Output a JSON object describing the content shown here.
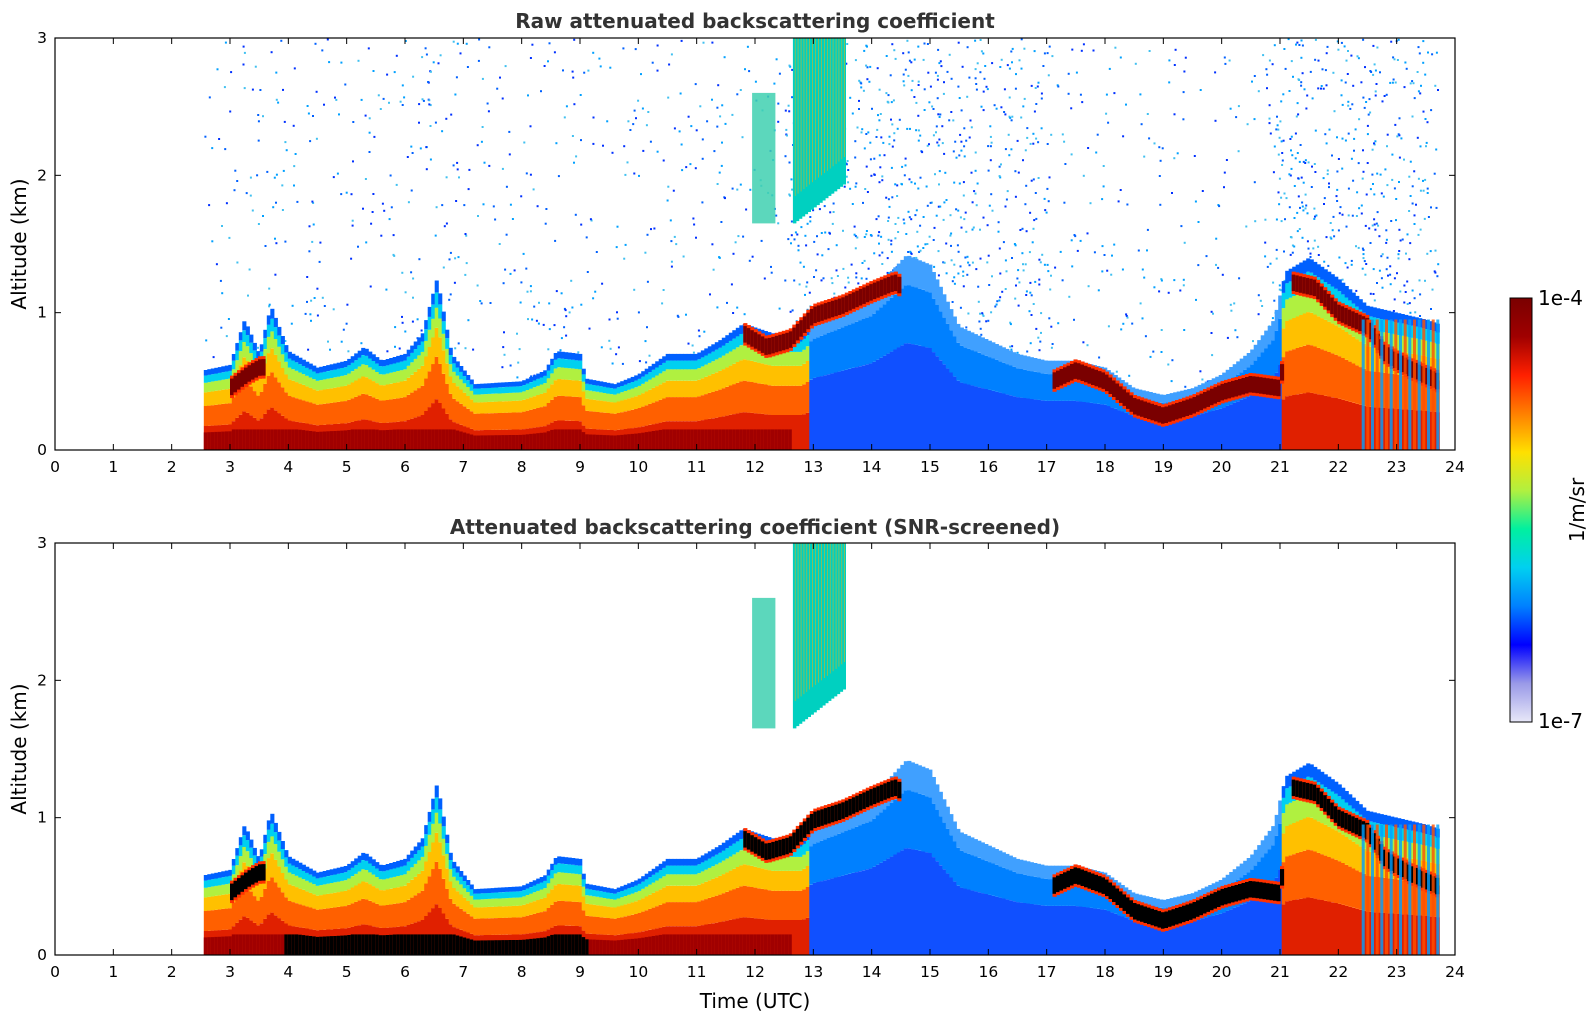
{
  "chart_data": [
    {
      "type": "heatmap",
      "title": "Raw attenuated backscattering coefficient",
      "xlabel": "",
      "ylabel": "Altitude (km)",
      "xlim": [
        0,
        24
      ],
      "ylim": [
        0,
        3
      ],
      "x_ticks": [
        "0",
        "1",
        "2",
        "3",
        "4",
        "5",
        "6",
        "7",
        "8",
        "9",
        "10",
        "11",
        "12",
        "13",
        "14",
        "15",
        "16",
        "17",
        "18",
        "19",
        "20",
        "21",
        "22",
        "23",
        "24"
      ],
      "y_ticks": [
        "0",
        "1",
        "2",
        "3"
      ],
      "data_start_hour": 2.55,
      "data_end_hour": 23.7,
      "boundary_layer_top_km": [
        [
          2.55,
          0.58
        ],
        [
          3.0,
          0.62
        ],
        [
          3.25,
          0.95
        ],
        [
          3.5,
          0.7
        ],
        [
          3.7,
          1.05
        ],
        [
          4.0,
          0.72
        ],
        [
          4.5,
          0.6
        ],
        [
          5.0,
          0.65
        ],
        [
          5.3,
          0.75
        ],
        [
          5.6,
          0.65
        ],
        [
          6.0,
          0.7
        ],
        [
          6.3,
          0.85
        ],
        [
          6.55,
          1.25
        ],
        [
          6.8,
          0.7
        ],
        [
          7.2,
          0.48
        ],
        [
          8.0,
          0.5
        ],
        [
          8.4,
          0.58
        ],
        [
          8.6,
          0.72
        ],
        [
          9.0,
          0.7
        ],
        [
          9.1,
          0.52
        ],
        [
          9.6,
          0.48
        ],
        [
          10.0,
          0.55
        ],
        [
          10.5,
          0.7
        ],
        [
          11.0,
          0.7
        ],
        [
          11.4,
          0.8
        ],
        [
          11.8,
          0.92
        ],
        [
          12.3,
          0.85
        ],
        [
          12.8,
          0.85
        ],
        [
          13.0,
          0.95
        ],
        [
          13.5,
          1.05
        ],
        [
          14.0,
          1.15
        ],
        [
          14.6,
          1.42
        ],
        [
          15.0,
          1.35
        ],
        [
          15.5,
          0.9
        ],
        [
          16.0,
          0.8
        ],
        [
          16.5,
          0.7
        ],
        [
          17.0,
          0.65
        ],
        [
          17.5,
          0.65
        ],
        [
          18.0,
          0.6
        ],
        [
          18.5,
          0.45
        ],
        [
          19.0,
          0.4
        ],
        [
          19.5,
          0.45
        ],
        [
          20.0,
          0.55
        ],
        [
          20.5,
          0.72
        ],
        [
          20.9,
          0.95
        ],
        [
          21.1,
          1.3
        ],
        [
          21.5,
          1.4
        ],
        [
          22.0,
          1.25
        ],
        [
          22.5,
          1.05
        ],
        [
          23.0,
          1.0
        ],
        [
          23.5,
          0.95
        ],
        [
          23.7,
          0.92
        ]
      ],
      "cloud_layer_km": [
        [
          3.0,
          0.45
        ],
        [
          3.3,
          0.55
        ],
        [
          3.5,
          0.6
        ],
        [
          11.8,
          0.85
        ],
        [
          12.2,
          0.75
        ],
        [
          12.6,
          0.8
        ],
        [
          13.0,
          0.98
        ],
        [
          13.5,
          1.05
        ],
        [
          14.0,
          1.15
        ],
        [
          14.4,
          1.22
        ],
        [
          17.1,
          0.5
        ],
        [
          17.5,
          0.58
        ],
        [
          18.0,
          0.5
        ],
        [
          18.5,
          0.32
        ],
        [
          19.0,
          0.25
        ],
        [
          19.5,
          0.32
        ],
        [
          20.0,
          0.42
        ],
        [
          20.5,
          0.48
        ],
        [
          21.0,
          0.45
        ],
        [
          21.2,
          1.22
        ],
        [
          21.6,
          1.18
        ],
        [
          22.0,
          1.0
        ],
        [
          22.5,
          0.9
        ],
        [
          22.8,
          0.7
        ],
        [
          23.2,
          0.6
        ],
        [
          23.7,
          0.5
        ]
      ],
      "elevated_layer": {
        "t0": 12.65,
        "t1": 13.55,
        "z_bottom_km": 1.65,
        "z_top_km": 3.0
      }
    },
    {
      "type": "heatmap",
      "title": "Attenuated backscattering coefficient (SNR-screened)",
      "xlabel": "Time (UTC)",
      "ylabel": "Altitude (km)",
      "xlim": [
        0,
        24
      ],
      "ylim": [
        0,
        3
      ],
      "x_ticks": [
        "0",
        "1",
        "2",
        "3",
        "4",
        "5",
        "6",
        "7",
        "8",
        "9",
        "10",
        "11",
        "12",
        "13",
        "14",
        "15",
        "16",
        "17",
        "18",
        "19",
        "20",
        "21",
        "22",
        "23",
        "24"
      ],
      "y_ticks": [
        "0",
        "1",
        "2",
        "3"
      ],
      "screened": true,
      "saturated_color": "#000000"
    }
  ],
  "colorbar": {
    "label": "1/m/sr",
    "max_label": "1e-4",
    "min_label": "1e-7",
    "colormap": [
      "#e8e8f8",
      "#9a9ae8",
      "#0000ff",
      "#0080ff",
      "#00d0f0",
      "#00f0a0",
      "#b0f040",
      "#ffe000",
      "#ff8000",
      "#ff2000",
      "#a00000",
      "#7a0000"
    ]
  }
}
